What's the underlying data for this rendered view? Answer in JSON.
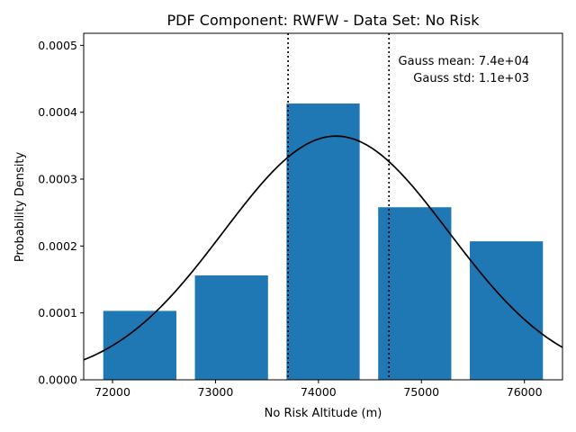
{
  "chart_data": {
    "type": "bar",
    "title": "PDF Component: RWFW - Data Set: No Risk",
    "xlabel": "No Risk Altitude (m)",
    "ylabel": "Probability Density",
    "xlim": [
      71720,
      76370
    ],
    "ylim": [
      0,
      0.000518
    ],
    "x_ticks": [
      72000,
      73000,
      74000,
      75000,
      76000
    ],
    "x_tick_labels": [
      "72000",
      "73000",
      "74000",
      "75000",
      "76000"
    ],
    "y_ticks": [
      0,
      0.0001,
      0.0002,
      0.0003,
      0.0004,
      0.0005
    ],
    "y_tick_labels": [
      "0.0000",
      "0.0001",
      "0.0002",
      "0.0003",
      "0.0004",
      "0.0005"
    ],
    "bars": [
      {
        "left": 71910,
        "right": 72620,
        "value": 0.000103
      },
      {
        "left": 72800,
        "right": 73510,
        "value": 0.000156
      },
      {
        "left": 73690,
        "right": 74400,
        "value": 0.000413
      },
      {
        "left": 74580,
        "right": 75290,
        "value": 0.000258
      },
      {
        "left": 75470,
        "right": 76180,
        "value": 0.000207
      }
    ],
    "bar_color": "#1f77b4",
    "gauss_curve": {
      "mean": 74170,
      "std": 1095,
      "color": "#000000"
    },
    "vlines": [
      73705,
      74685
    ],
    "annotations": {
      "mean_text": "Gauss mean: 7.4e+04",
      "std_text": "Gauss std: 1.1e+03"
    },
    "grid": false,
    "legend": "none"
  }
}
